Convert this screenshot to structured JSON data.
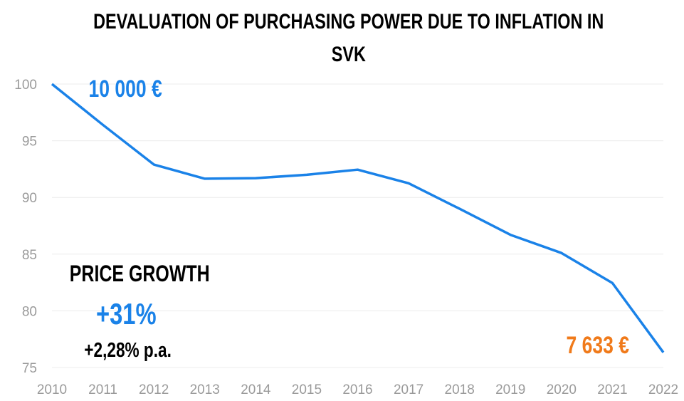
{
  "chart_data": {
    "type": "line",
    "title_line1": "DEVALUATION OF PURCHASING POWER DUE TO INFLATION IN",
    "title_line2": "SVK",
    "xlabel": "",
    "ylabel": "",
    "x": [
      2010,
      2011,
      2012,
      2013,
      2014,
      2015,
      2016,
      2017,
      2018,
      2019,
      2020,
      2021,
      2022
    ],
    "series": [
      {
        "values": [
          100,
          96.4,
          92.9,
          91.65,
          91.7,
          92.0,
          92.45,
          91.25,
          89.0,
          86.7,
          85.1,
          82.45,
          76.33
        ],
        "color": "#1a82e8"
      }
    ],
    "ylim": [
      75,
      100
    ],
    "yticks": [
      75,
      80,
      85,
      90,
      95,
      100
    ],
    "grid": true,
    "legend": "none",
    "annotations": {
      "start_value": "10 000 €",
      "end_value": "7 633 €",
      "price_growth_label": "PRICE GROWTH",
      "price_growth_value": "+31%",
      "price_growth_pa": "+2,28% p.a."
    },
    "colors": {
      "line": "#1a82e8",
      "start": "#1a82e8",
      "end": "#f07a1a",
      "growth": "#1a82e8"
    }
  }
}
